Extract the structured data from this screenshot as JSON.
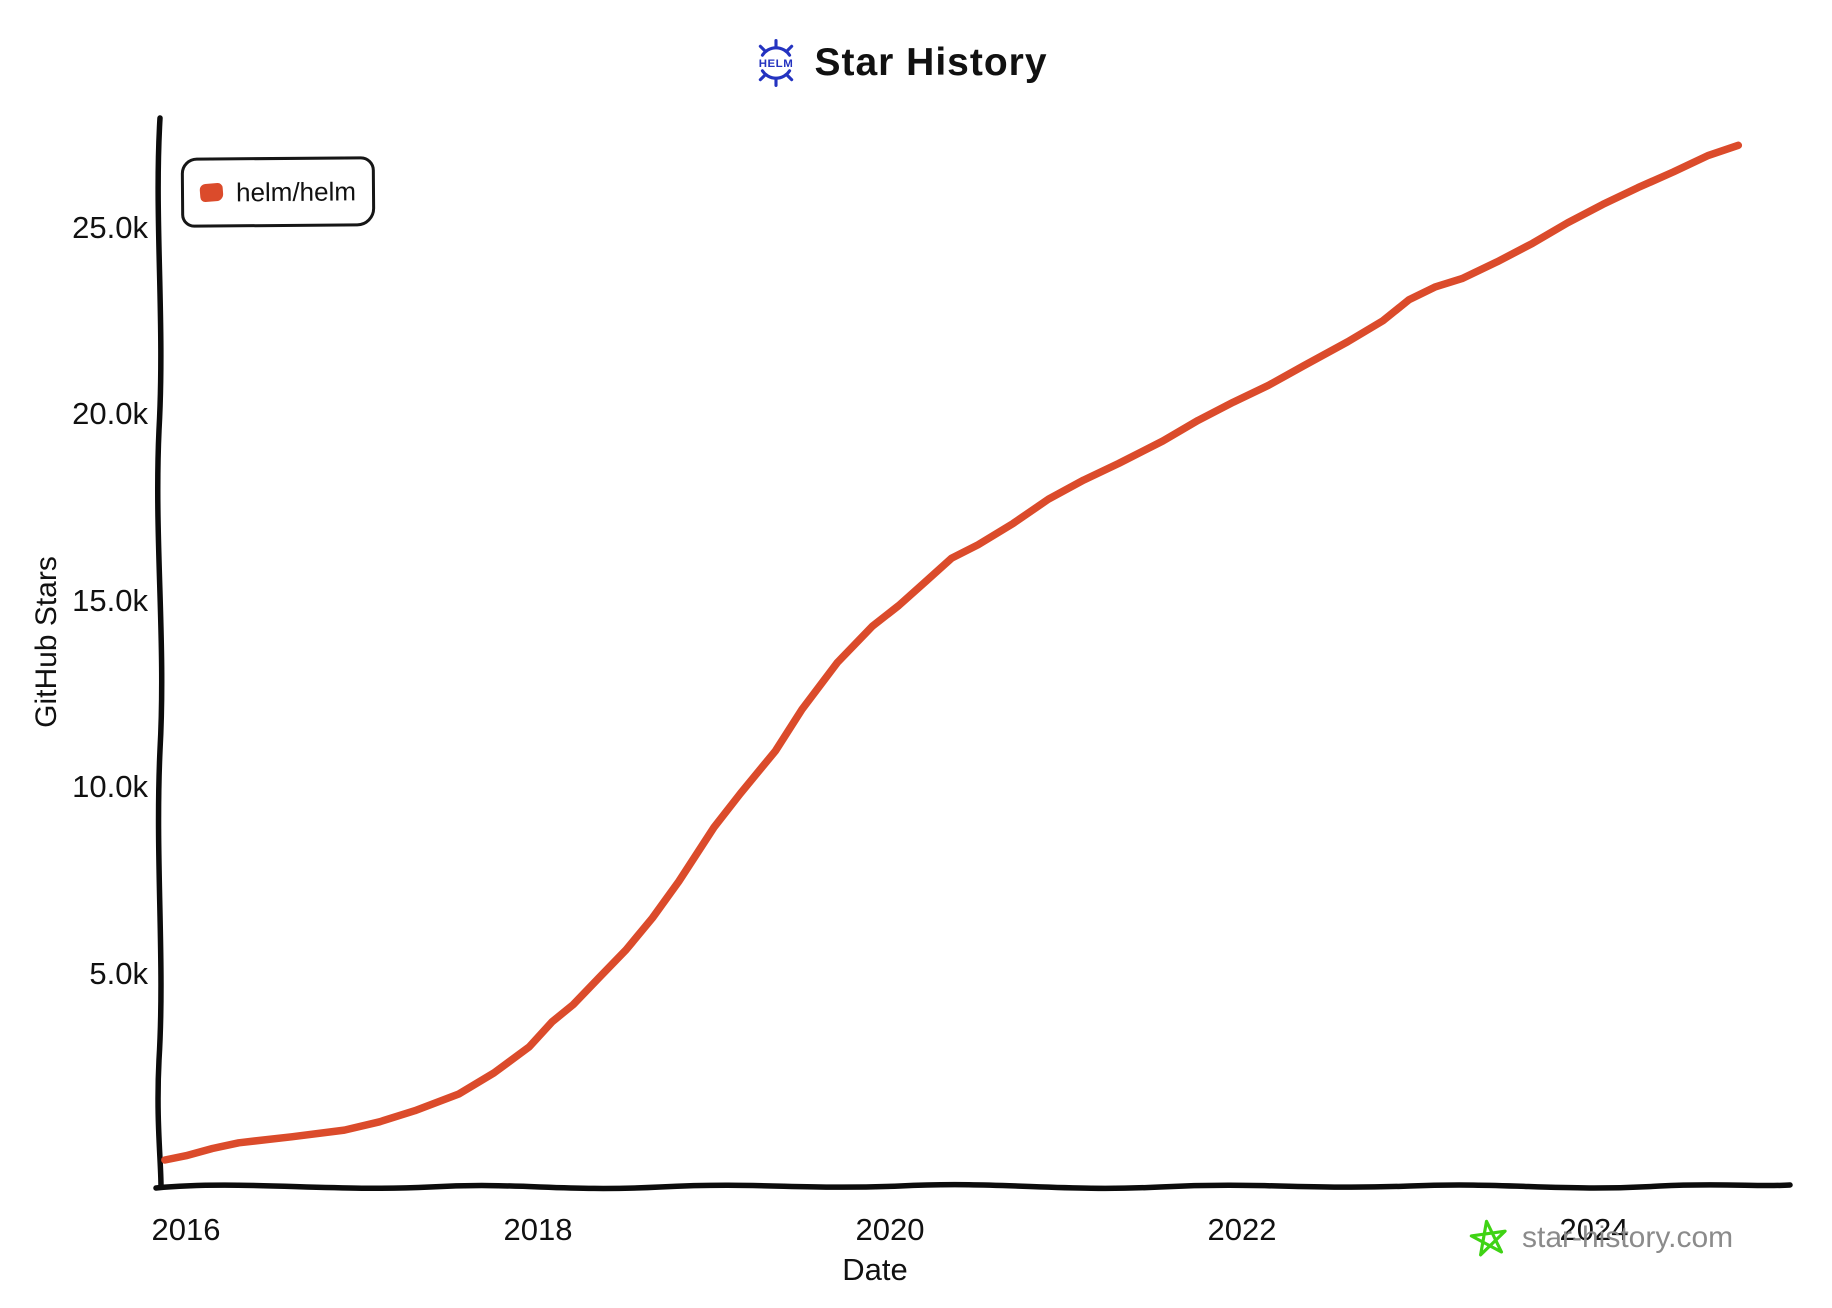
{
  "title": {
    "text": "Star History",
    "logo_color": "#2433C0"
  },
  "legend": {
    "items": [
      {
        "label": "helm/helm",
        "color": "#DB4B2B"
      }
    ]
  },
  "watermark": {
    "text": "star-history.com",
    "star_color": "#3FD314",
    "text_color": "#8B8B8B"
  },
  "chart_data": {
    "type": "line",
    "title": "Star History",
    "xlabel": "Date",
    "ylabel": "GitHub Stars",
    "grid": false,
    "legend_position": "top-left",
    "xlim": [
      2015.85,
      2025.1
    ],
    "ylim": [
      0,
      27500
    ],
    "x_ticks": [
      {
        "value": 2016,
        "label": "2016"
      },
      {
        "value": 2018,
        "label": "2018"
      },
      {
        "value": 2020,
        "label": "2020"
      },
      {
        "value": 2022,
        "label": "2022"
      },
      {
        "value": 2024,
        "label": "2024"
      }
    ],
    "y_ticks": [
      {
        "value": 5000,
        "label": "5.0k"
      },
      {
        "value": 10000,
        "label": "10.0k"
      },
      {
        "value": 15000,
        "label": "15.0k"
      },
      {
        "value": 20000,
        "label": "20.0k"
      },
      {
        "value": 25000,
        "label": "25.0k"
      }
    ],
    "series": [
      {
        "name": "helm/helm",
        "color": "#DB4B2B",
        "x": [
          2015.88,
          2016.0,
          2016.15,
          2016.3,
          2016.6,
          2016.9,
          2017.1,
          2017.3,
          2017.55,
          2017.75,
          2017.95,
          2018.08,
          2018.2,
          2018.35,
          2018.5,
          2018.65,
          2018.8,
          2019.0,
          2019.15,
          2019.35,
          2019.5,
          2019.7,
          2019.9,
          2020.05,
          2020.2,
          2020.35,
          2020.5,
          2020.7,
          2020.9,
          2021.1,
          2021.3,
          2021.55,
          2021.75,
          2021.95,
          2022.15,
          2022.35,
          2022.6,
          2022.8,
          2022.95,
          2023.1,
          2023.25,
          2023.45,
          2023.65,
          2023.85,
          2024.05,
          2024.25,
          2024.45,
          2024.65,
          2024.82
        ],
        "y": [
          0,
          150,
          300,
          430,
          640,
          830,
          1000,
          1300,
          1800,
          2350,
          3000,
          3700,
          4200,
          4900,
          5600,
          6500,
          7500,
          8900,
          9800,
          11000,
          12100,
          13300,
          14300,
          14900,
          15500,
          16100,
          16500,
          17100,
          17700,
          18200,
          18700,
          19300,
          19800,
          20300,
          20800,
          21300,
          21900,
          22500,
          23100,
          23400,
          23600,
          24100,
          24600,
          25100,
          25600,
          26100,
          26500,
          26900,
          27200
        ]
      }
    ]
  }
}
